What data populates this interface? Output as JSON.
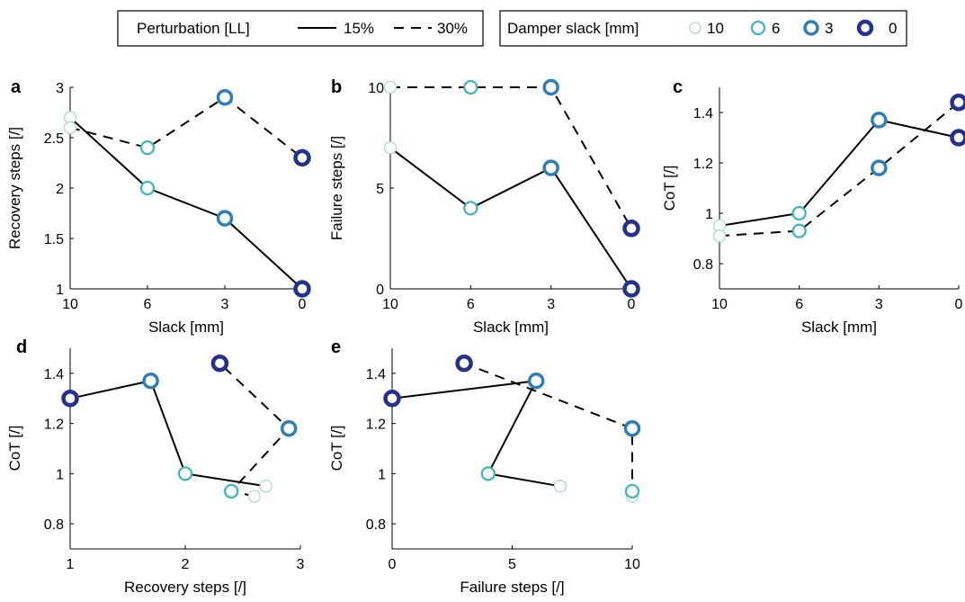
{
  "legend": {
    "perturbation": {
      "title": "Perturbation [LL]",
      "entries": [
        {
          "label": "15%",
          "dash": "solid"
        },
        {
          "label": "30%",
          "dash": "dashed"
        }
      ]
    },
    "slack": {
      "title": "Damper slack [mm]",
      "entries": [
        {
          "label": "10",
          "color": "#a8dcc4"
        },
        {
          "label": "6",
          "color": "#40b6c2"
        },
        {
          "label": "3",
          "color": "#2e7eb8"
        },
        {
          "label": "0",
          "color": "#25318f"
        }
      ]
    }
  },
  "chart_data": [
    {
      "panel": "a",
      "type": "line",
      "xlabel": "Slack [mm]",
      "ylabel": "Recovery steps [/]",
      "categories": [
        "10",
        "6",
        "3",
        "0"
      ],
      "ylim": [
        1,
        3
      ],
      "yticks": [
        "1",
        "1.5",
        "2",
        "2.5",
        "3"
      ],
      "series": [
        {
          "name": "15%",
          "values": [
            2.7,
            2.0,
            1.7,
            1.0
          ]
        },
        {
          "name": "30%",
          "values": [
            2.6,
            2.4,
            2.9,
            2.3
          ]
        }
      ]
    },
    {
      "panel": "b",
      "type": "line",
      "xlabel": "Slack [mm]",
      "ylabel": "Failure steps [/]",
      "categories": [
        "10",
        "6",
        "3",
        "0"
      ],
      "ylim": [
        0,
        10
      ],
      "yticks": [
        "0",
        "5",
        "10"
      ],
      "series": [
        {
          "name": "15%",
          "values": [
            7,
            4,
            6,
            0
          ]
        },
        {
          "name": "30%",
          "values": [
            10,
            10,
            10,
            3
          ]
        }
      ]
    },
    {
      "panel": "c",
      "type": "line",
      "xlabel": "Slack [mm]",
      "ylabel": "CoT [/]",
      "categories": [
        "10",
        "6",
        "3",
        "0"
      ],
      "ylim": [
        0.7,
        1.5
      ],
      "yticks": [
        "0.8",
        "1",
        "1.2",
        "1.4"
      ],
      "series": [
        {
          "name": "15%",
          "values": [
            0.95,
            1.0,
            1.37,
            1.3
          ]
        },
        {
          "name": "30%",
          "values": [
            0.91,
            0.93,
            1.18,
            1.44
          ]
        }
      ]
    },
    {
      "panel": "d",
      "type": "line",
      "xlabel": "Recovery steps [/]",
      "ylabel": "CoT [/]",
      "xlim": [
        1,
        3
      ],
      "xticks": [
        "1",
        "2",
        "3"
      ],
      "ylim": [
        0.7,
        1.5
      ],
      "yticks": [
        "0.8",
        "1",
        "1.2",
        "1.4"
      ],
      "series": [
        {
          "name": "15%",
          "x": [
            2.7,
            2.0,
            1.7,
            1.0
          ],
          "y": [
            0.95,
            1.0,
            1.37,
            1.3
          ]
        },
        {
          "name": "30%",
          "x": [
            2.6,
            2.4,
            2.9,
            2.3
          ],
          "y": [
            0.91,
            0.93,
            1.18,
            1.44
          ]
        }
      ]
    },
    {
      "panel": "e",
      "type": "line",
      "xlabel": "Failure steps [/]",
      "ylabel": "CoT [/]",
      "xlim": [
        0,
        10
      ],
      "xticks": [
        "0",
        "5",
        "10"
      ],
      "ylim": [
        0.7,
        1.5
      ],
      "yticks": [
        "0.8",
        "1",
        "1.2",
        "1.4"
      ],
      "series": [
        {
          "name": "15%",
          "x": [
            7,
            4,
            6,
            0
          ],
          "y": [
            0.95,
            1.0,
            1.37,
            1.3
          ]
        },
        {
          "name": "30%",
          "x": [
            10,
            10,
            10,
            3
          ],
          "y": [
            0.91,
            0.93,
            1.18,
            1.44
          ]
        }
      ]
    }
  ]
}
